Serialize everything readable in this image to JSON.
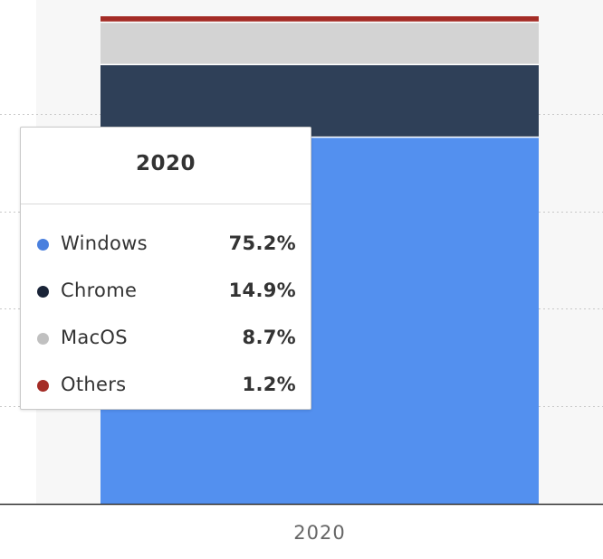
{
  "chart_data": {
    "type": "bar",
    "stacked": true,
    "stack_type": "percent",
    "categories": [
      "2020"
    ],
    "series": [
      {
        "name": "Windows",
        "values": [
          75.2
        ],
        "color": "#5390ef"
      },
      {
        "name": "Chrome",
        "values": [
          14.9
        ],
        "color": "#2f4058"
      },
      {
        "name": "MacOS",
        "values": [
          8.7
        ],
        "color": "#d3d3d3"
      },
      {
        "name": "Others",
        "values": [
          1.2
        ],
        "color": "#a42c26"
      }
    ],
    "ylim": [
      0,
      100
    ],
    "grid": true,
    "colors": {
      "plot_background": "#f7f7f7",
      "gridline": "#c8c8c8",
      "axis_line": "#333333",
      "tick_label": "#666666"
    }
  },
  "tooltip": {
    "title": "2020",
    "rows": [
      {
        "dot_color": "#4a80de",
        "label": "Windows",
        "value": "75.2%"
      },
      {
        "dot_color": "#1a2438",
        "label": "Chrome",
        "value": "14.9%"
      },
      {
        "dot_color": "#c0c0c0",
        "label": "MacOS",
        "value": "8.7%"
      },
      {
        "dot_color": "#a42c26",
        "label": "Others",
        "value": "1.2%"
      }
    ]
  }
}
